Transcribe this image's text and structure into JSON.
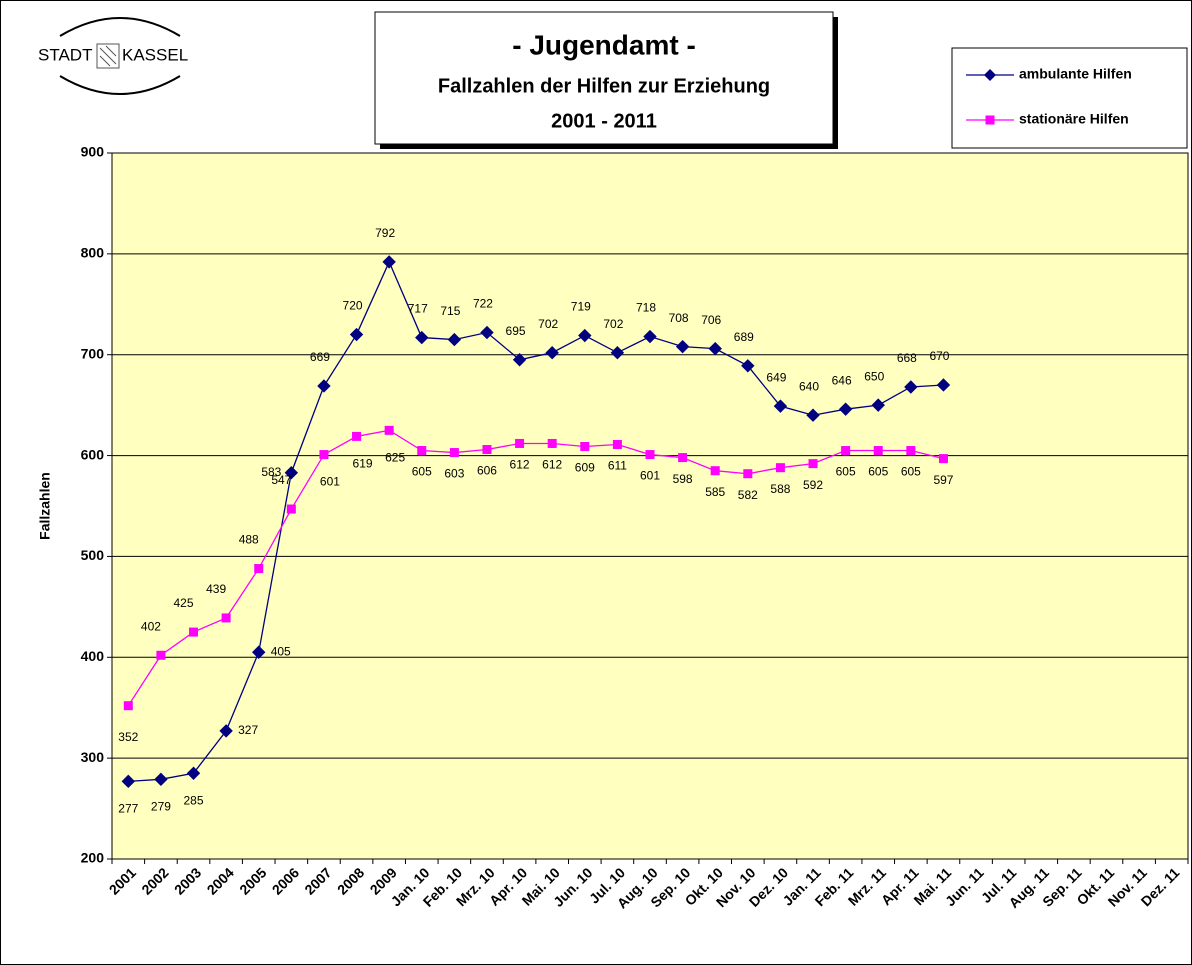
{
  "chart_data": {
    "type": "line",
    "logo": [
      "STADT",
      "KASSEL"
    ],
    "title": "- Jugendamt -",
    "subtitle": [
      "Fallzahlen der Hilfen zur Erziehung",
      "2001 - 2011"
    ],
    "y_label": "Fallzahlen",
    "categories": [
      "2001",
      "2002",
      "2003",
      "2004",
      "2005",
      "2006",
      "2007",
      "2008",
      "2009",
      "Jan. 10",
      "Feb. 10",
      "Mrz. 10",
      "Apr. 10",
      "Mai. 10",
      "Jun. 10",
      "Jul. 10",
      "Aug. 10",
      "Sep. 10",
      "Okt. 10",
      "Nov. 10",
      "Dez. 10",
      "Jan. 11",
      "Feb. 11",
      "Mrz. 11",
      "Apr. 11",
      "Mai. 11",
      "Jun. 11",
      "Jul. 11",
      "Aug. 11",
      "Sep. 11",
      "Okt. 11",
      "Nov. 11",
      "Dez. 11"
    ],
    "series": [
      {
        "name": "ambulante Hilfen",
        "color": "#000080",
        "marker": "diamond",
        "values": [
          277,
          279,
          285,
          327,
          405,
          583,
          669,
          720,
          792,
          717,
          715,
          722,
          695,
          702,
          719,
          702,
          718,
          708,
          706,
          689,
          649,
          640,
          646,
          650,
          668,
          670,
          null,
          null,
          null,
          null,
          null,
          null,
          null
        ]
      },
      {
        "name": "stationäre Hilfen",
        "color": "#ff00ff",
        "marker": "square",
        "values": [
          352,
          402,
          425,
          439,
          488,
          547,
          601,
          619,
          625,
          605,
          603,
          606,
          612,
          612,
          609,
          611,
          601,
          598,
          585,
          582,
          588,
          592,
          605,
          605,
          605,
          597,
          null,
          null,
          null,
          null,
          null,
          null,
          null
        ]
      }
    ],
    "ylim": [
      200,
      900
    ],
    "yticks": [
      200,
      300,
      400,
      500,
      600,
      700,
      800,
      900
    ],
    "grid": true,
    "legend": "top-right",
    "background": "#ffffc0"
  }
}
